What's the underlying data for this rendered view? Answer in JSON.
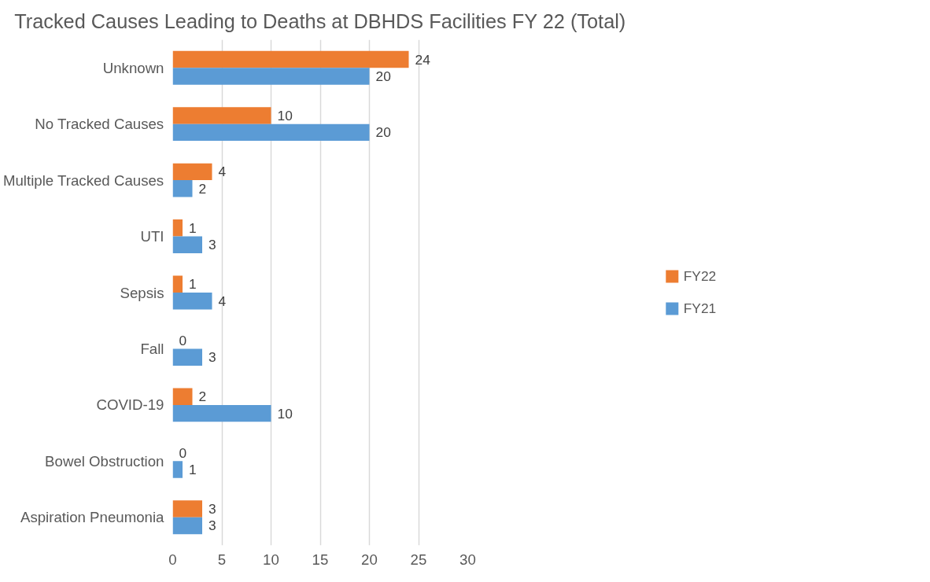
{
  "chart_data": {
    "type": "bar",
    "orientation": "horizontal",
    "title": "Tracked Causes Leading to Deaths at DBHDS Facilities FY 22 (Total)",
    "categories": [
      "Unknown",
      "No Tracked Causes",
      "Multiple Tracked Causes",
      "UTI",
      "Sepsis",
      "Fall",
      "COVID-19",
      "Bowel Obstruction",
      "Aspiration Pneumonia"
    ],
    "series": [
      {
        "name": "FY22",
        "color": "#ed7d31",
        "values": [
          24,
          10,
          4,
          1,
          1,
          0,
          2,
          0,
          3
        ]
      },
      {
        "name": "FY21",
        "color": "#5b9bd5",
        "values": [
          20,
          20,
          2,
          3,
          4,
          3,
          10,
          1,
          3
        ]
      }
    ],
    "xlim": [
      0,
      30
    ],
    "xticks": [
      0,
      5,
      10,
      15,
      20,
      25,
      30
    ],
    "grid": "x",
    "legend": "right",
    "data_labels": true
  }
}
